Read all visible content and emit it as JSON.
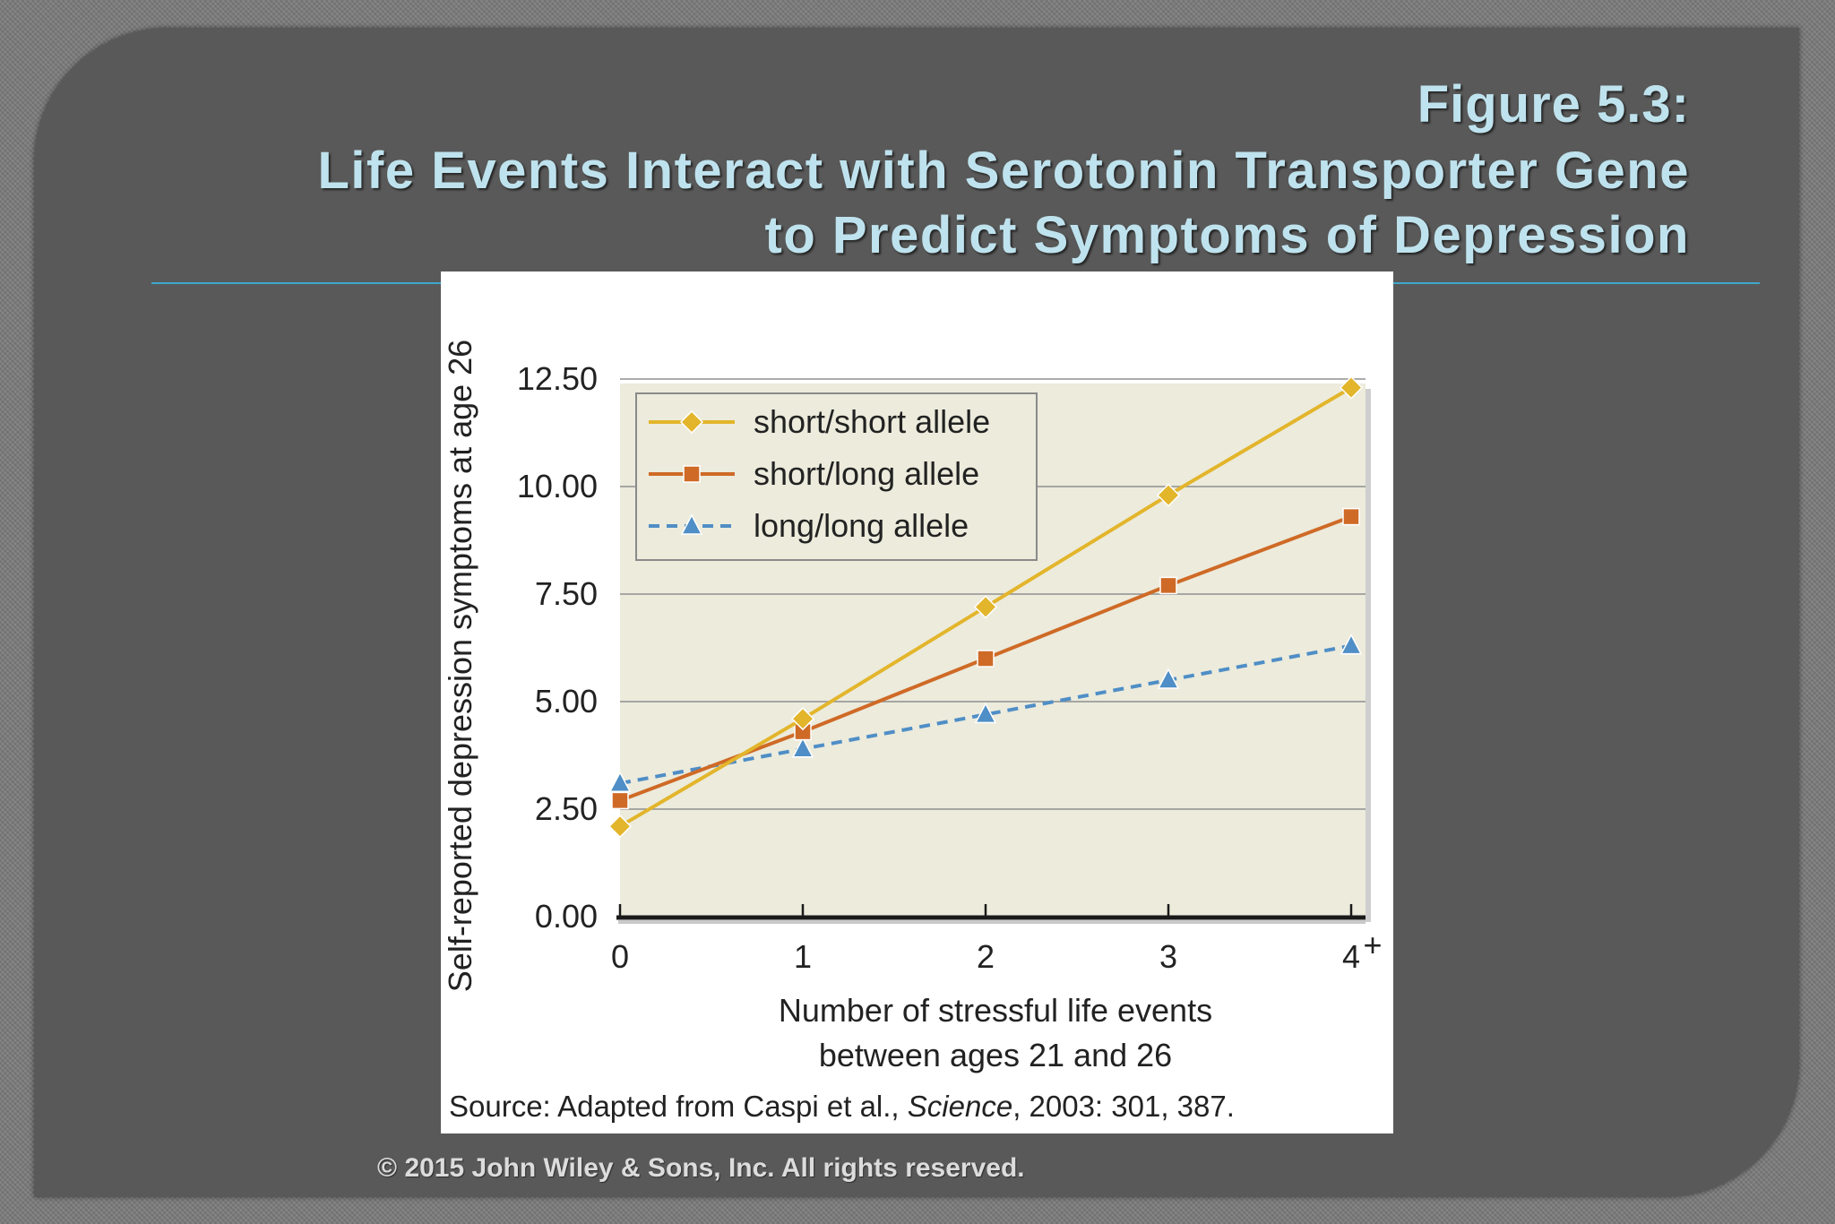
{
  "header": {
    "figure_number": "Figure 5.3:",
    "title_line_1": "Life Events Interact with Serotonin Transporter Gene",
    "title_line_2": "to Predict Symptoms of Depression"
  },
  "footer": {
    "copyright": "© 2015 John Wiley & Sons, Inc. All rights reserved."
  },
  "colors": {
    "title": "#bfe3ee",
    "rule": "#3ea7cd",
    "plot_background": "#ecebdc",
    "short_short": "#e3b52b",
    "short_long": "#cf6a26",
    "long_long": "#4f8ec6"
  },
  "chart_data": {
    "type": "line",
    "title": "",
    "xlabel_lines": [
      "Number of stressful life events",
      "between ages 21 and 26"
    ],
    "ylabel": "Self-reported depression symptoms at age 26",
    "categories": [
      "0",
      "1",
      "2",
      "3",
      "4"
    ],
    "last_category_superscript": "+",
    "y_ticks": [
      "0.00",
      "2.50",
      "5.00",
      "7.50",
      "10.00",
      "12.50"
    ],
    "ylim": [
      0,
      12.5
    ],
    "grid": true,
    "legend_position": "top-left",
    "series": [
      {
        "name": "short/short allele",
        "marker": "diamond",
        "dash": false,
        "color": "#e3b52b",
        "values": [
          2.1,
          4.6,
          7.2,
          9.8,
          12.3
        ]
      },
      {
        "name": "short/long allele",
        "marker": "square",
        "dash": false,
        "color": "#cf6a26",
        "values": [
          2.7,
          4.3,
          6.0,
          7.7,
          9.3
        ]
      },
      {
        "name": "long/long allele",
        "marker": "triangle",
        "dash": true,
        "color": "#4f8ec6",
        "values": [
          3.1,
          3.9,
          4.7,
          5.5,
          6.3
        ]
      }
    ],
    "source_prefix": "Source: Adapted from Caspi et al., ",
    "source_journal": "Science",
    "source_suffix": ", 2003: 301, 387."
  }
}
